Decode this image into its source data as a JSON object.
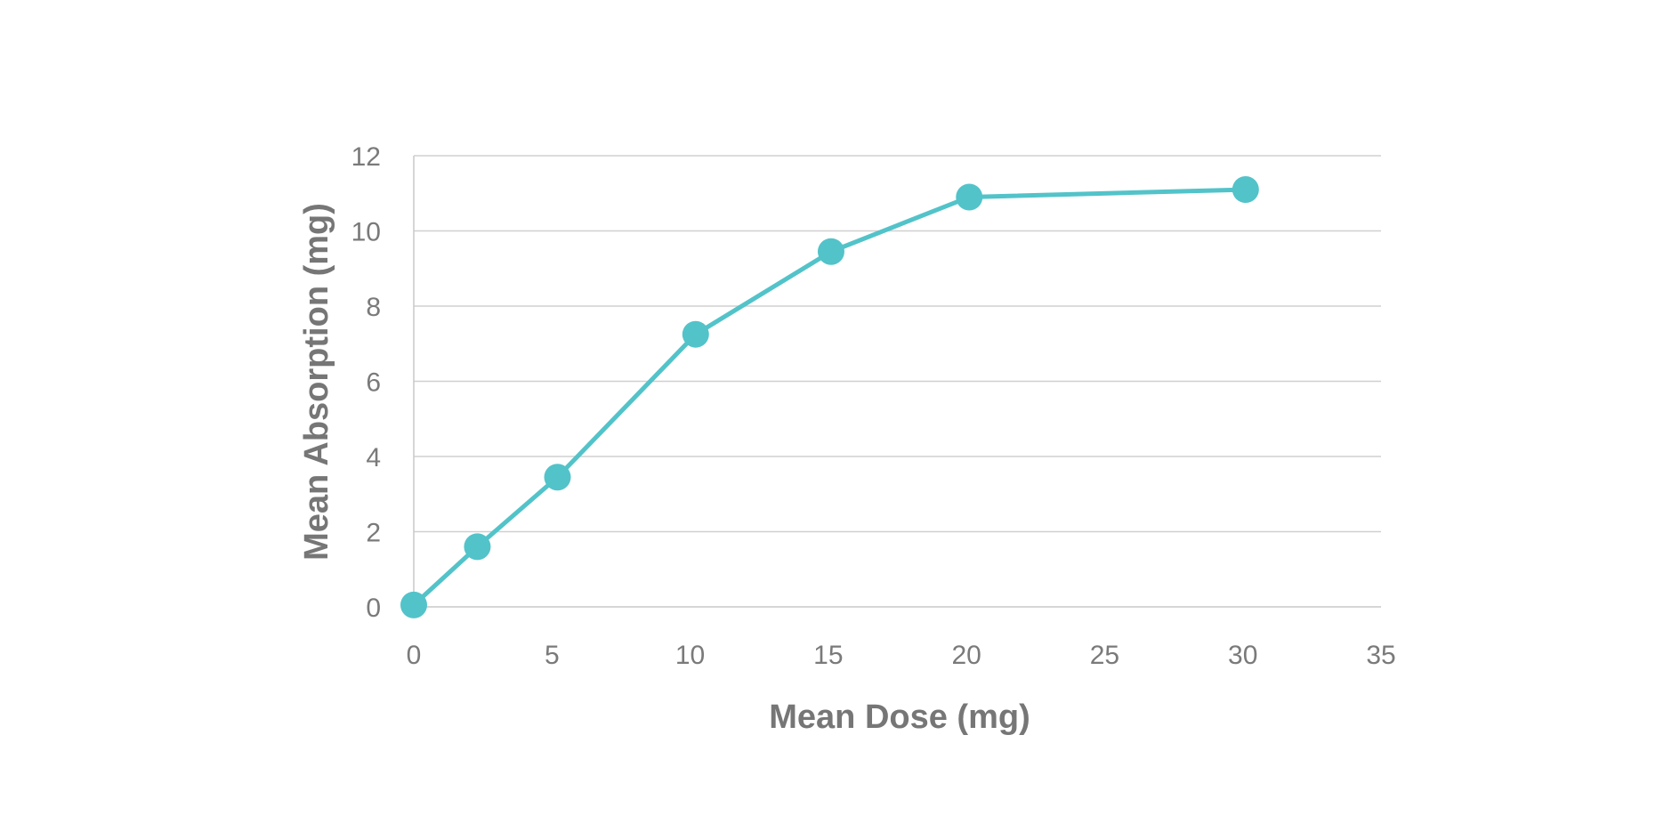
{
  "chart_data": {
    "type": "line",
    "title": "",
    "xlabel": "Mean Dose (mg)",
    "ylabel": "Mean Absorption (mg)",
    "xlim": [
      0,
      35
    ],
    "ylim": [
      0,
      12
    ],
    "xticks": [
      0,
      5,
      10,
      15,
      20,
      25,
      30,
      35
    ],
    "yticks": [
      0,
      2,
      4,
      6,
      8,
      10,
      12
    ],
    "grid": "horizontal",
    "legend": "none",
    "series": [
      {
        "color": "#52c3c9",
        "x": [
          0,
          2.3,
          5.2,
          10.2,
          15.1,
          20.1,
          30.1
        ],
        "y": [
          0.05,
          1.6,
          3.45,
          7.25,
          9.45,
          10.9,
          11.1
        ]
      }
    ]
  }
}
